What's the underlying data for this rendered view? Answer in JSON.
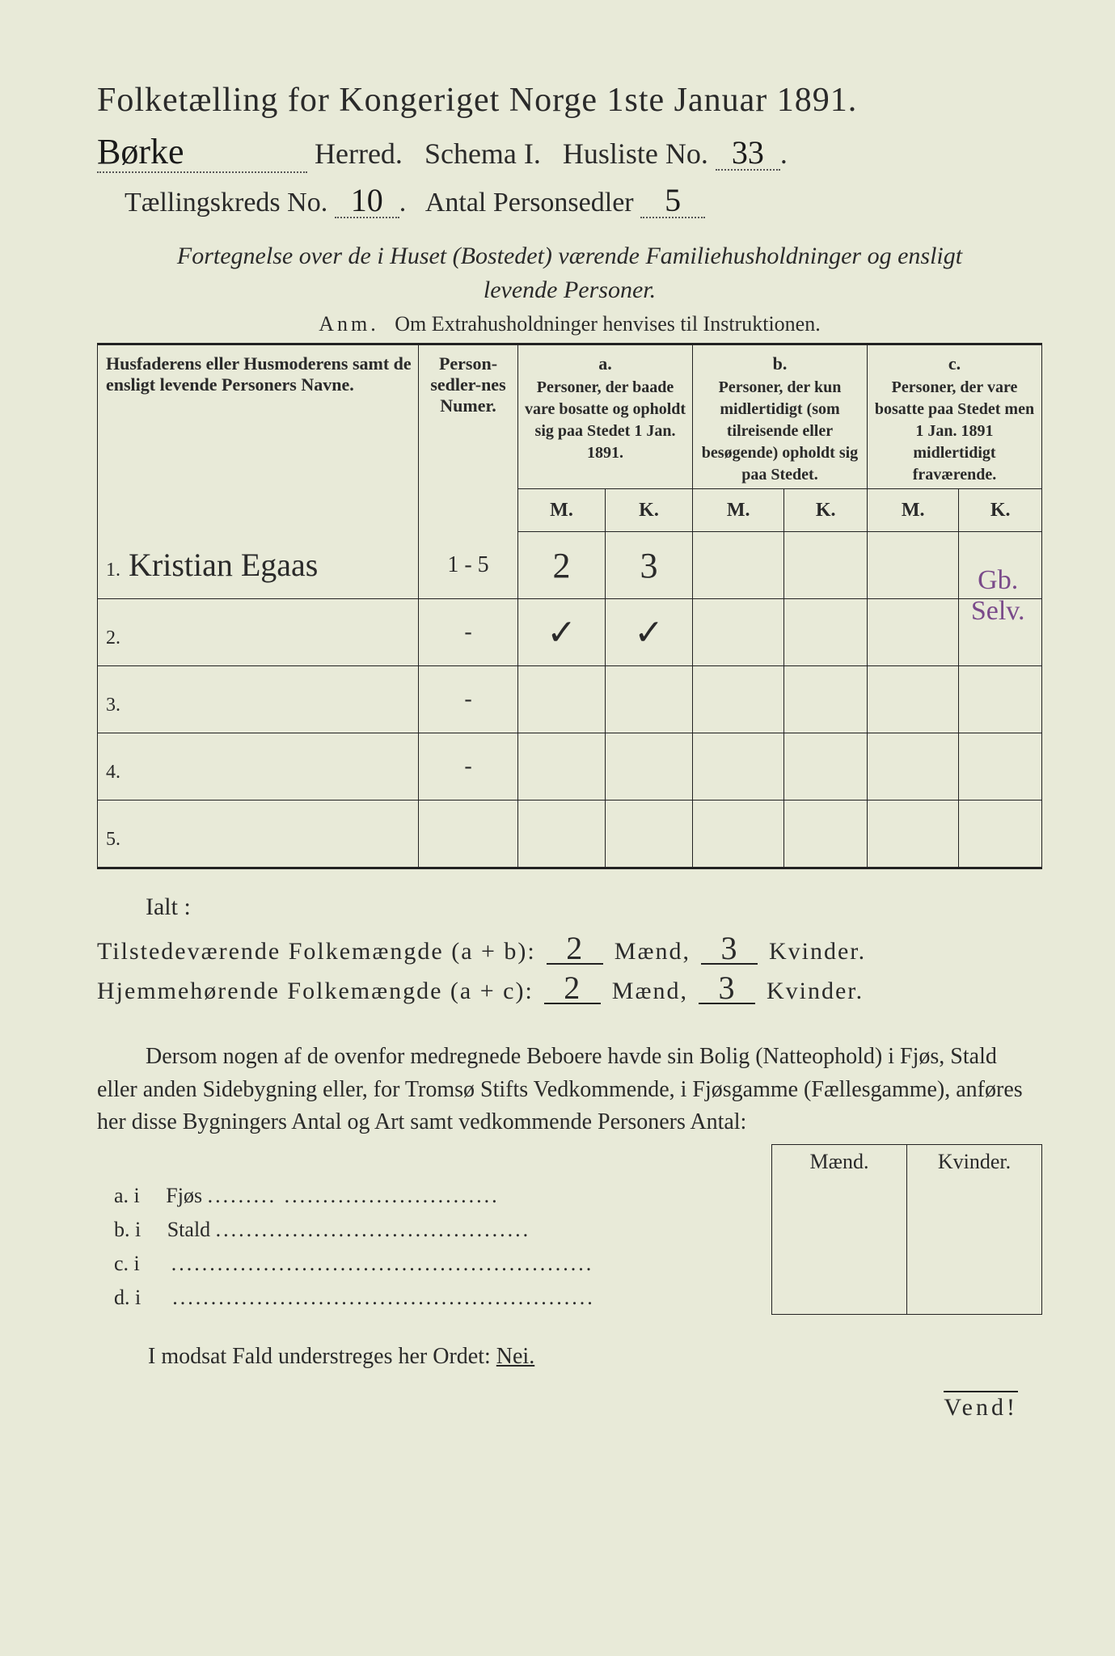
{
  "title": "Folketælling for Kongeriget Norge 1ste Januar 1891.",
  "line2": {
    "herred_hand": "Børke",
    "herred_label": "Herred.",
    "schema": "Schema I.",
    "husliste_label": "Husliste No.",
    "husliste_no": "33"
  },
  "line3": {
    "kreds_label": "Tællingskreds No.",
    "kreds_no": "10",
    "antal_label": "Antal Personsedler",
    "antal_val": "5"
  },
  "intro1": "Fortegnelse over de i Huset (Bostedet) værende Familiehusholdninger og ensligt",
  "intro2": "levende Personer.",
  "anm_label": "Anm.",
  "anm_text": "Om Extrahusholdninger henvises til Instruktionen.",
  "head_name": "Husfaderens eller Husmoderens samt de ensligt levende Personers Navne.",
  "head_num": "Person-sedler-nes Numer.",
  "head_a_label": "a.",
  "head_a": "Personer, der baade vare bosatte og opholdt sig paa Stedet 1 Jan. 1891.",
  "head_b_label": "b.",
  "head_b": "Personer, der kun midlertidigt (som tilreisende eller besøgende) opholdt sig paa Stedet.",
  "head_c_label": "c.",
  "head_c": "Personer, der vare bosatte paa Stedet men 1 Jan. 1891 midlertidigt fraværende.",
  "mk_m": "M.",
  "mk_k": "K.",
  "rows": [
    {
      "n": "1.",
      "name": "Kristian Egaas",
      "num": "1 - 5",
      "am": "2",
      "ak": "3",
      "bm": "",
      "bk": "",
      "cm": "",
      "ck": "",
      "note": "Gb. Selv."
    },
    {
      "n": "2.",
      "name": "",
      "num": "-",
      "am": "✓",
      "ak": "✓",
      "bm": "",
      "bk": "",
      "cm": "",
      "ck": "",
      "note": ""
    },
    {
      "n": "3.",
      "name": "",
      "num": "-",
      "am": "",
      "ak": "",
      "bm": "",
      "bk": "",
      "cm": "",
      "ck": "",
      "note": ""
    },
    {
      "n": "4.",
      "name": "",
      "num": "-",
      "am": "",
      "ak": "",
      "bm": "",
      "bk": "",
      "cm": "",
      "ck": "",
      "note": ""
    },
    {
      "n": "5.",
      "name": "",
      "num": "",
      "am": "",
      "ak": "",
      "bm": "",
      "bk": "",
      "cm": "",
      "ck": "",
      "note": ""
    }
  ],
  "ialt": "Ialt :",
  "tot1_label": "Tilstedeværende Folkemængde (a + b):",
  "tot2_label": "Hjemmehørende Folkemængde (a + c):",
  "tot_m": "2",
  "tot_k": "3",
  "maend": "Mænd,",
  "kvinder": "Kvinder.",
  "para": "Dersom nogen af de ovenfor medregnede Beboere havde sin Bolig (Natteophold) i Fjøs, Stald eller anden Sidebygning eller, for Tromsø Stifts Vedkommende, i Fjøsgamme (Fællesgamme), anføres her disse Bygningers Antal og Art samt vedkommende Personers Antal:",
  "bld_maend": "Mænd.",
  "bld_kvinder": "Kvinder.",
  "bld_rows": [
    {
      "label": "a.  i",
      "text": "Fjøs",
      "dots": ".........  ............................"
    },
    {
      "label": "b.  i",
      "text": "Stald",
      "dots": "........................................."
    },
    {
      "label": "c.  i",
      "text": "",
      "dots": "......................................................."
    },
    {
      "label": "d.  i",
      "text": "",
      "dots": "......................................................."
    }
  ],
  "footer": "I modsat Fald understreges her Ordet: ",
  "footer_nei": "Nei.",
  "vend": "Vend!",
  "colors": {
    "bg": "#e8ead8",
    "text": "#2a2a2a",
    "purple_note": "#7a4a8a"
  }
}
